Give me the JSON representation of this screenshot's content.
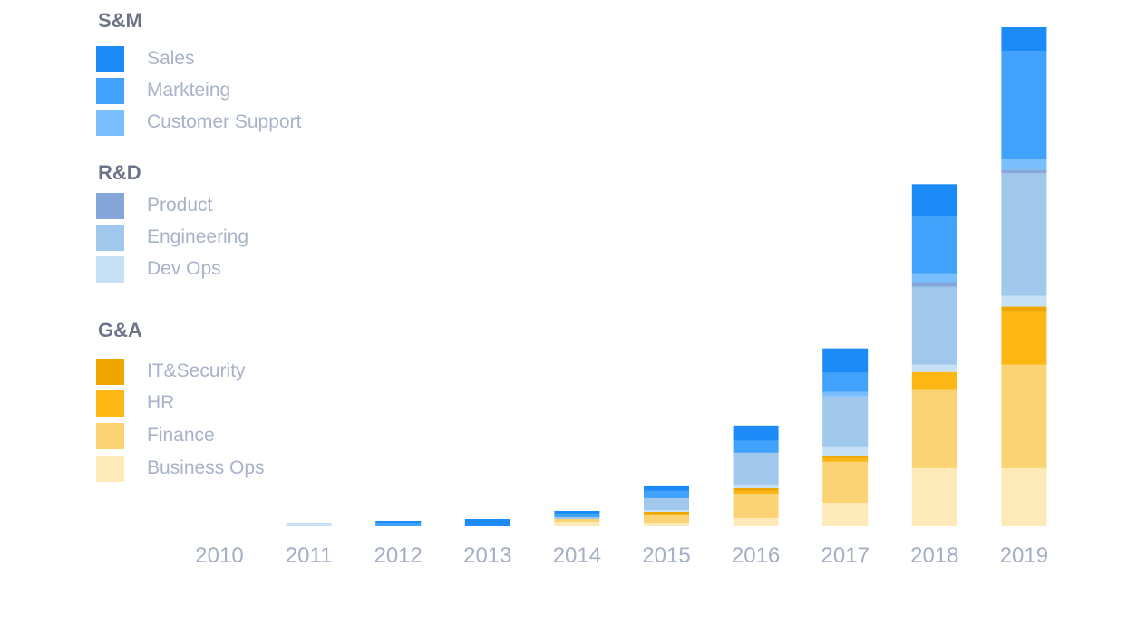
{
  "chart_data": {
    "type": "bar",
    "stacked": true,
    "categories": [
      "2010",
      "2011",
      "2012",
      "2013",
      "2014",
      "2015",
      "2016",
      "2017",
      "2018",
      "2019"
    ],
    "legend_groups": [
      {
        "title": "S&M",
        "series": [
          "Sales",
          "Markteing",
          "Customer Support"
        ]
      },
      {
        "title": "R&D",
        "series": [
          "Product",
          "Engineering",
          "Dev Ops"
        ]
      },
      {
        "title": "G&A",
        "series": [
          "IT&Security",
          "HR",
          "Finance",
          "Business Ops"
        ]
      }
    ],
    "series": [
      {
        "name": "Business Ops",
        "color": "#FEE9B8",
        "values": [
          0,
          0,
          0,
          0,
          5,
          3,
          9,
          26,
          64,
          64
        ]
      },
      {
        "name": "Finance",
        "color": "#FCD374",
        "values": [
          0,
          0,
          0,
          0,
          3,
          9,
          26,
          45,
          86,
          114
        ]
      },
      {
        "name": "HR",
        "color": "#FDB714",
        "values": [
          0,
          0,
          0,
          0,
          0,
          2,
          4,
          4,
          20,
          59
        ]
      },
      {
        "name": "IT&Security",
        "color": "#EFA600",
        "values": [
          0,
          0,
          0,
          0,
          0,
          2,
          3,
          3,
          0,
          5
        ]
      },
      {
        "name": "Dev Ops",
        "color": "#C6E0F6",
        "values": [
          0,
          3,
          0,
          0,
          0,
          2,
          4,
          9,
          8,
          12
        ]
      },
      {
        "name": "Engineering",
        "color": "#A0C8EC",
        "values": [
          0,
          0,
          0,
          0,
          2,
          13,
          35,
          56,
          86,
          135
        ]
      },
      {
        "name": "Product",
        "color": "#84A6D9",
        "values": [
          0,
          0,
          0,
          0,
          0,
          0,
          0,
          0,
          5,
          4
        ]
      },
      {
        "name": "Customer Support",
        "color": "#79BEFF",
        "values": [
          0,
          0,
          0,
          0,
          0,
          0,
          0,
          5,
          10,
          11
        ]
      },
      {
        "name": "Markteing",
        "color": "#40A2FB",
        "values": [
          0,
          0,
          3,
          0,
          4,
          8,
          13,
          21,
          62,
          120
        ]
      },
      {
        "name": "Sales",
        "color": "#1C8BF7",
        "values": [
          0,
          0,
          3,
          8,
          3,
          5,
          17,
          27,
          36,
          26
        ]
      }
    ],
    "ylim": [
      0,
      550
    ],
    "xlabel": "",
    "ylabel": "",
    "grid": false
  }
}
